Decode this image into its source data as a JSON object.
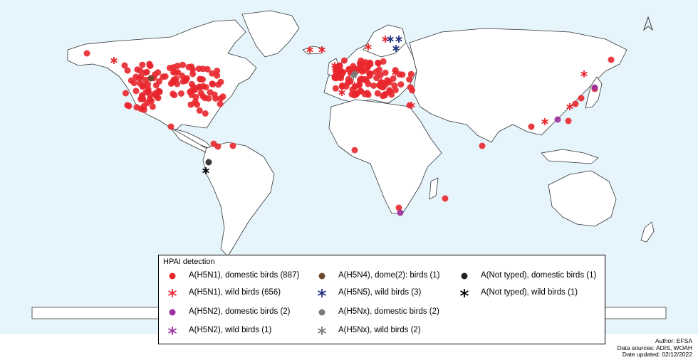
{
  "legend": {
    "title": "HPAI detection",
    "items": [
      {
        "label": "A(H5N1), domestic birds (887)",
        "color": "#e8262c",
        "shape": "dot"
      },
      {
        "label": "A(H5N1), wild birds (656)",
        "color": "#e8262c",
        "shape": "star"
      },
      {
        "label": "A(H5N2), domestic birds (2)",
        "color": "#9b2f9b",
        "shape": "dot"
      },
      {
        "label": "A(H5N2), wild birds (1)",
        "color": "#9b2f9b",
        "shape": "star"
      },
      {
        "label": "A(H5N4), dome(2): birds (1)",
        "color": "#6b4a2b",
        "shape": "dot"
      },
      {
        "label": "A(H5N5), wild birds (3)",
        "color": "#1f2f80",
        "shape": "star"
      },
      {
        "label": "A(H5Nx), domestic birds (2)",
        "color": "#7a7a7a",
        "shape": "dot"
      },
      {
        "label": "A(H5Nx), wild birds (2)",
        "color": "#7a7a7a",
        "shape": "star"
      },
      {
        "label": "A(Not typed), domestic birds (1)",
        "color": "#222222",
        "shape": "dot"
      },
      {
        "label": "A(Not typed), wild birds (1)",
        "color": "#000000",
        "shape": "star"
      }
    ]
  },
  "credits": {
    "author": "Author: EFSA",
    "sources": "Data sources: ADIS, WOAH",
    "updated": "Date updated: 02/12/2022"
  },
  "colors": {
    "ocean": "#e6f5fc",
    "land": "#ffffff",
    "border": "#333333",
    "h5n1": "#e8262c"
  },
  "icons": {
    "north": "north-arrow-icon"
  }
}
